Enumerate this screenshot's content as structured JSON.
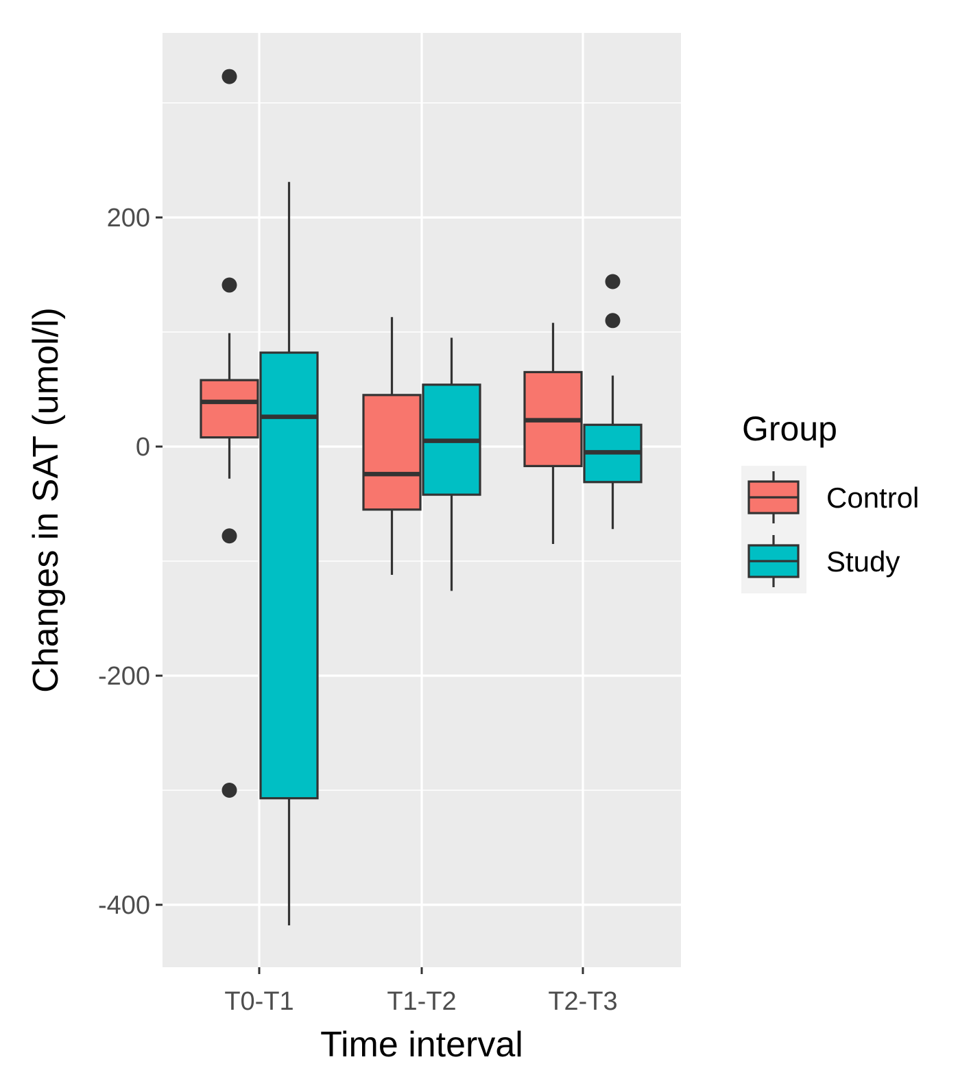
{
  "chart_data": {
    "type": "boxplot",
    "title": "",
    "xlabel": "Time interval",
    "ylabel": "Changes in SAT (umol/l)",
    "ylim": [
      -455,
      360
    ],
    "yticks": [
      200,
      0,
      -200,
      -400
    ],
    "ytick_labels": [
      "200",
      "0",
      "-200",
      "-400"
    ],
    "categories": [
      "T0-T1",
      "T1-T2",
      "T2-T3"
    ],
    "grid": true,
    "legend": {
      "title": "Group",
      "position": "right"
    },
    "colors": {
      "panel": "#ebebeb",
      "grid": "#ffffff",
      "outline": "#333333",
      "axis_text": "#4d4d4d"
    },
    "series": [
      {
        "name": "Control",
        "color": "#f8766d",
        "boxes": [
          {
            "category": "T0-T1",
            "whisker_low": -28,
            "q1": 8,
            "median": 39,
            "q3": 58,
            "whisker_high": 99,
            "outliers": [
              323,
              141,
              -78,
              -300
            ]
          },
          {
            "category": "T1-T2",
            "whisker_low": -112,
            "q1": -55,
            "median": -24,
            "q3": 45,
            "whisker_high": 113,
            "outliers": []
          },
          {
            "category": "T2-T3",
            "whisker_low": -85,
            "q1": -17,
            "median": 23,
            "q3": 65,
            "whisker_high": 108,
            "outliers": []
          }
        ]
      },
      {
        "name": "Study",
        "color": "#00bfc4",
        "boxes": [
          {
            "category": "T0-T1",
            "whisker_low": -418,
            "q1": -307,
            "median": 26,
            "q3": 82,
            "whisker_high": 231,
            "outliers": []
          },
          {
            "category": "T1-T2",
            "whisker_low": -126,
            "q1": -42,
            "median": 5,
            "q3": 54,
            "whisker_high": 95,
            "outliers": []
          },
          {
            "category": "T2-T3",
            "whisker_low": -72,
            "q1": -31,
            "median": -5,
            "q3": 19,
            "whisker_high": 62,
            "outliers": [
              144,
              110
            ]
          }
        ]
      }
    ]
  }
}
